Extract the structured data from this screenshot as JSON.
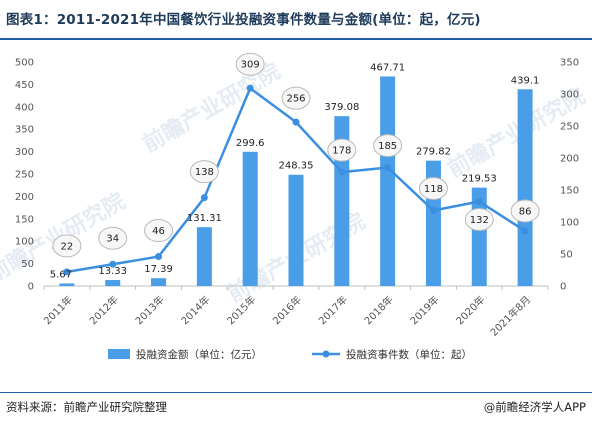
{
  "header": {
    "title": "图表1：2011-2021年中国餐饮行业投融资事件数量与金额(单位：起，亿元)"
  },
  "footer": {
    "source": "资料来源：前瞻产业研究院整理",
    "brand": "@前瞻经济学人APP"
  },
  "watermark": {
    "text": "前瞻产业研究院"
  },
  "colors": {
    "bar": "#4a9ee8",
    "line": "#3a8fe0",
    "marker_fill": "#3a8fe0",
    "bubble_fill": "#f7f7f7",
    "bubble_stroke": "#b9b9b9",
    "grid": "#e6e6e6"
  },
  "chart_data": {
    "type": "bar",
    "categories": [
      "2011年",
      "2012年",
      "2013年",
      "2014年",
      "2015年",
      "2016年",
      "2017年",
      "2018年",
      "2019年",
      "2020年",
      "2021年8月"
    ],
    "series": [
      {
        "name": "投融资金额（单位：亿元）",
        "type": "bar",
        "axis": "left",
        "values": [
          5.67,
          13.33,
          17.39,
          131.31,
          299.6,
          248.35,
          379.08,
          467.71,
          279.82,
          219.53,
          439.1
        ],
        "labels": [
          "5.67",
          "13.33",
          "17.39",
          "131.31",
          "299.6",
          "248.35",
          "379.08",
          "467.71",
          "279.82",
          "219.53",
          "439.1"
        ]
      },
      {
        "name": "投融资事件数（单位：起）",
        "type": "line",
        "axis": "right",
        "values": [
          22,
          34,
          46,
          138,
          309,
          256,
          178,
          185,
          118,
          132,
          86
        ],
        "labels": [
          "22",
          "34",
          "46",
          "138",
          "309",
          "256",
          "178",
          "185",
          "118",
          "132",
          "86"
        ]
      }
    ],
    "y_left": {
      "min": 0,
      "max": 500,
      "ticks": [
        "0",
        "50",
        "100",
        "150",
        "200",
        "250",
        "300",
        "350",
        "400",
        "450",
        "500"
      ]
    },
    "y_right": {
      "min": 0,
      "max": 350,
      "ticks": [
        "0",
        "50",
        "100",
        "150",
        "200",
        "250",
        "300",
        "350"
      ]
    },
    "grid": false,
    "legend": "bottom"
  }
}
